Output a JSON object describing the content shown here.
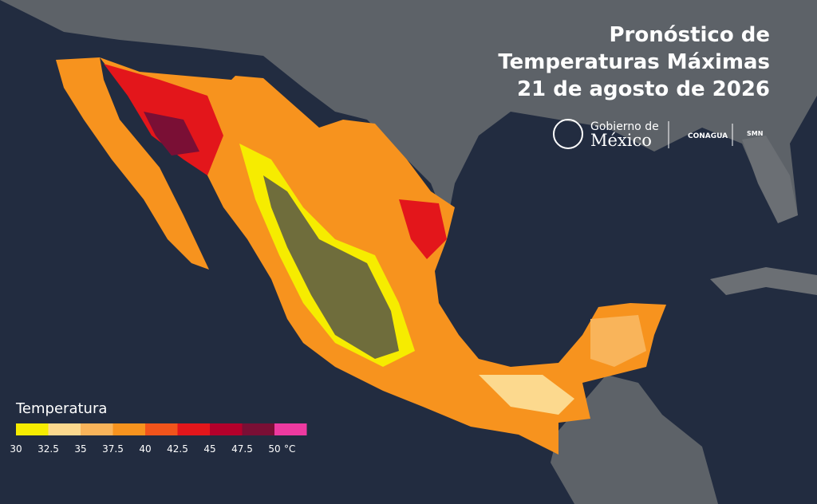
{
  "header": {
    "title_lines": [
      "Pronóstico de",
      "Temperaturas Máximas",
      "21 de agosto de 2026"
    ]
  },
  "logos": {
    "government_top": "Gobierno de",
    "government_bottom": "México",
    "agency": "CONAGUA",
    "service": "SMN"
  },
  "legend": {
    "title": "Temperatura",
    "ticks": [
      30,
      32.5,
      35,
      37.5,
      40,
      42.5,
      45,
      47.5,
      50
    ],
    "unit": "°C",
    "colors": [
      "#f6ec00",
      "#fcd98e",
      "#f9b45a",
      "#f7931e",
      "#f2541b",
      "#e3161b",
      "#b3002b",
      "#7a0f35",
      "#ee3aa0"
    ]
  }
}
